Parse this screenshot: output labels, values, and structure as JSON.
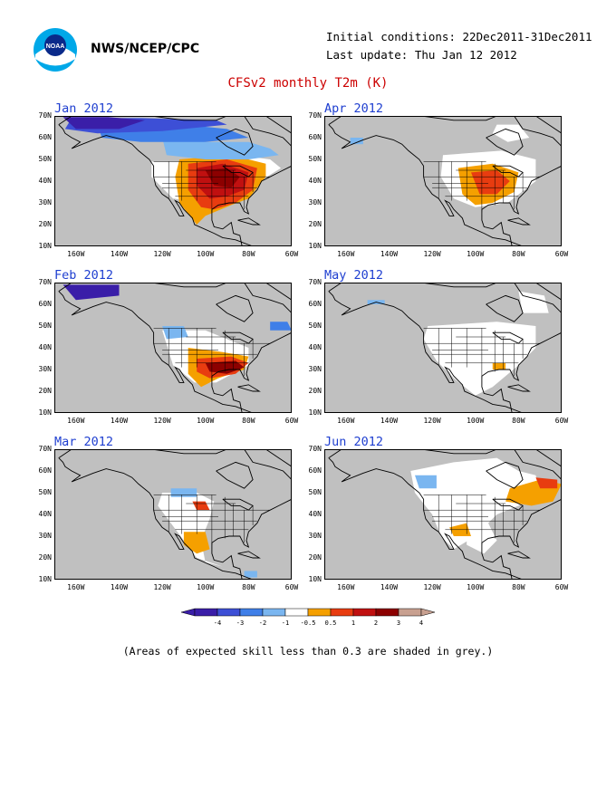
{
  "header": {
    "agency": "NWS/NCEP/CPC",
    "initial_conditions": "Initial conditions: 22Dec2011-31Dec2011",
    "last_update": "Last update: Thu Jan 12 2012",
    "title": "CFSv2 monthly T2m (K)",
    "logo_text": "NOAA"
  },
  "panels": [
    {
      "month": "Jan 2012",
      "pattern": "jan"
    },
    {
      "month": "Apr 2012",
      "pattern": "apr"
    },
    {
      "month": "Feb 2012",
      "pattern": "feb"
    },
    {
      "month": "May 2012",
      "pattern": "may"
    },
    {
      "month": "Mar 2012",
      "pattern": "mar"
    },
    {
      "month": "Jun 2012",
      "pattern": "jun"
    }
  ],
  "lat_labels": [
    "70N",
    "60N",
    "50N",
    "40N",
    "30N",
    "20N",
    "10N"
  ],
  "lon_labels": [
    "160W",
    "140W",
    "120W",
    "100W",
    "80W",
    "60W"
  ],
  "colorbar": {
    "labels": [
      "-4",
      "-3",
      "-2",
      "-1",
      "-0.5",
      "0.5",
      "1",
      "2",
      "3",
      "4"
    ],
    "colors": [
      "#3a1ea8",
      "#3d4fd6",
      "#3f7fe8",
      "#7ab6f0",
      "#ffffff",
      "#f5a000",
      "#e83c10",
      "#c01010",
      "#8c0000",
      "#c8a090"
    ]
  },
  "colors": {
    "grey": "#c0c0c0",
    "white": "#ffffff",
    "cold_deep": "#3a1ea8",
    "cold": "#3d4fd6",
    "cool": "#3f7fe8",
    "cool_light": "#7ab6f0",
    "warm": "#f5a000",
    "hot": "#e83c10",
    "hotter": "#c01010",
    "hottest": "#8c0000"
  },
  "note": "(Areas of expected skill less than 0.3 are shaded in grey.)"
}
